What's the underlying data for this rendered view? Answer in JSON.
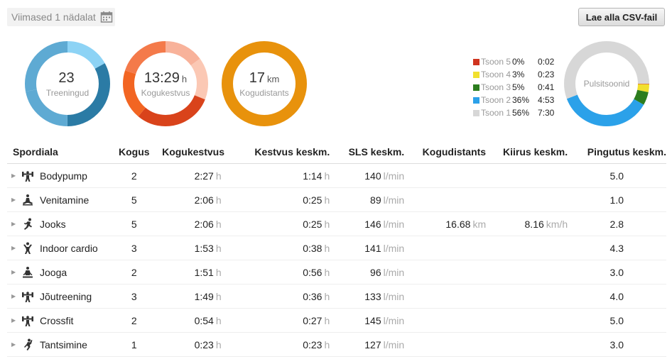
{
  "period": {
    "label": "Viimased 1 nädalat",
    "icon": "calendar-icon"
  },
  "csv_button": "Lae alla CSV-fail",
  "summary": [
    {
      "value": "23",
      "unit": "",
      "label": "Treeningud",
      "segments": [
        [
          0.17,
          "#8dd3f5"
        ],
        [
          0.33,
          "#2b7ba5"
        ],
        [
          0.22,
          "#5eaad3"
        ],
        [
          0.28,
          "#5eaad3"
        ]
      ]
    },
    {
      "value": "13:29",
      "unit": "h",
      "label": "Kogukestvus",
      "segments": [
        [
          0.15,
          "#f8b29a"
        ],
        [
          0.16,
          "#fbc8b4"
        ],
        [
          0.3,
          "#d9431b"
        ],
        [
          0.19,
          "#f26522"
        ],
        [
          0.2,
          "#f47a4a"
        ]
      ]
    },
    {
      "value": "17",
      "unit": "km",
      "label": "Kogudistants",
      "segments": [
        [
          1.0,
          "#e8920c"
        ]
      ]
    }
  ],
  "zones": [
    {
      "name": "Tsoon 5",
      "pct": "0%",
      "time": "0:02",
      "color": "#d0341f",
      "frac": 0.002
    },
    {
      "name": "Tsoon 4",
      "pct": "3%",
      "time": "0:23",
      "color": "#f1e02e",
      "frac": 0.03
    },
    {
      "name": "Tsoon 3",
      "pct": "5%",
      "time": "0:41",
      "color": "#2c7d1e",
      "frac": 0.05
    },
    {
      "name": "Tsoon 2",
      "pct": "36%",
      "time": "4:53",
      "color": "#2ba1e9",
      "frac": 0.36
    },
    {
      "name": "Tsoon 1",
      "pct": "56%",
      "time": "7:30",
      "color": "#d7d7d7",
      "frac": 0.558
    }
  ],
  "pulse_label": "Pulsitsoonid",
  "table": {
    "headers": [
      "Spordiala",
      "Kogus",
      "Kogukestvus",
      "Kestvus keskm.",
      "SLS keskm.",
      "Kogudistants",
      "Kiirus keskm.",
      "Pingutus keskm."
    ],
    "units": {
      "h": "h",
      "lmin": "l/min",
      "km": "km",
      "kmh": "km/h"
    },
    "rows": [
      {
        "sport": "Bodypump",
        "icon": "weightlifting-icon",
        "count": "2",
        "total": "2:27",
        "avg": "1:14",
        "hr": "140",
        "dist": "",
        "speed": "",
        "effort": "5.0"
      },
      {
        "sport": "Venitamine",
        "icon": "stretching-icon",
        "count": "5",
        "total": "2:06",
        "avg": "0:25",
        "hr": "89",
        "dist": "",
        "speed": "",
        "effort": "1.0"
      },
      {
        "sport": "Jooks",
        "icon": "running-icon",
        "count": "5",
        "total": "2:06",
        "avg": "0:25",
        "hr": "146",
        "dist": "16.68",
        "speed": "8.16",
        "effort": "2.8"
      },
      {
        "sport": "Indoor cardio",
        "icon": "cardio-icon",
        "count": "3",
        "total": "1:53",
        "avg": "0:38",
        "hr": "141",
        "dist": "",
        "speed": "",
        "effort": "4.3"
      },
      {
        "sport": "Jooga",
        "icon": "yoga-icon",
        "count": "2",
        "total": "1:51",
        "avg": "0:56",
        "hr": "96",
        "dist": "",
        "speed": "",
        "effort": "3.0"
      },
      {
        "sport": "Jõutreening",
        "icon": "weightlifting-icon",
        "count": "3",
        "total": "1:49",
        "avg": "0:36",
        "hr": "133",
        "dist": "",
        "speed": "",
        "effort": "4.0"
      },
      {
        "sport": "Crossfit",
        "icon": "weightlifting-icon",
        "count": "2",
        "total": "0:54",
        "avg": "0:27",
        "hr": "145",
        "dist": "",
        "speed": "",
        "effort": "5.0"
      },
      {
        "sport": "Tantsimine",
        "icon": "dancing-icon",
        "count": "1",
        "total": "0:23",
        "avg": "0:23",
        "hr": "127",
        "dist": "",
        "speed": "",
        "effort": "3.0"
      }
    ]
  }
}
